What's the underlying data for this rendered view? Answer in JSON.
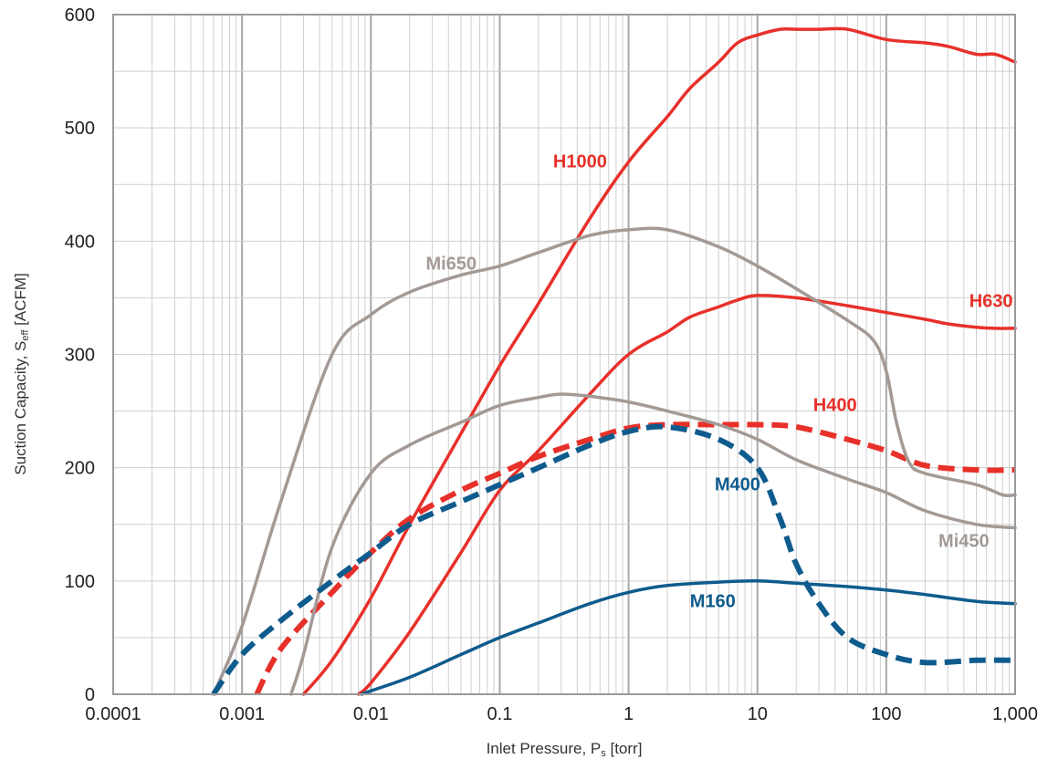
{
  "chart_data": {
    "type": "line",
    "xlabel": "Inlet Pressure, P",
    "xlabel_sub": "s",
    "xlabel_unit": " [torr]",
    "ylabel": "Suction Capacity, S",
    "ylabel_sub": "eff",
    "ylabel_unit": " [ACFM]",
    "x_scale": "log",
    "xlim": [
      0.0001,
      1000
    ],
    "ylim": [
      0,
      600
    ],
    "grid": true,
    "x_ticks": [
      0.0001,
      0.001,
      0.01,
      0.1,
      1,
      10,
      100,
      1000
    ],
    "x_tick_labels": [
      "0.0001",
      "0.001",
      "0.01",
      "0.1",
      "1",
      "10",
      "100",
      "1,000"
    ],
    "y_ticks": [
      0,
      100,
      200,
      300,
      400,
      500,
      600
    ],
    "y_tick_labels": [
      "0",
      "100",
      "200",
      "300",
      "400",
      "500",
      "600"
    ],
    "colors": {
      "red": "#e8302a",
      "gray": "#a39a95",
      "blue": "#0e5b8d",
      "grid": "#cfcfcf",
      "frame": "#9a9a9a"
    },
    "series": [
      {
        "name": "H1000",
        "color": "#e8302a",
        "dash": false,
        "x": [
          0.003,
          0.005,
          0.01,
          0.02,
          0.05,
          0.1,
          0.2,
          0.5,
          1,
          2,
          3,
          5,
          7,
          10,
          15,
          20,
          30,
          50,
          100,
          200,
          300,
          500,
          700,
          1000
        ],
        "y": [
          0,
          30,
          85,
          150,
          230,
          290,
          345,
          420,
          470,
          510,
          535,
          558,
          575,
          582,
          587,
          587,
          587,
          587,
          578,
          575,
          572,
          565,
          565,
          558
        ]
      },
      {
        "name": "H630",
        "color": "#e8302a",
        "dash": false,
        "x": [
          0.008,
          0.01,
          0.02,
          0.05,
          0.1,
          0.2,
          0.5,
          1,
          2,
          3,
          5,
          7,
          10,
          20,
          50,
          100,
          200,
          300,
          500,
          700,
          1000
        ],
        "y": [
          0,
          10,
          55,
          125,
          180,
          215,
          265,
          300,
          320,
          333,
          342,
          348,
          352,
          350,
          343,
          337,
          331,
          327,
          324,
          323,
          323
        ]
      },
      {
        "name": "H400",
        "color": "#e8302a",
        "dash": true,
        "x": [
          0.0013,
          0.002,
          0.005,
          0.01,
          0.02,
          0.05,
          0.1,
          0.2,
          0.5,
          1,
          2,
          5,
          10,
          20,
          50,
          100,
          200,
          500,
          1000
        ],
        "y": [
          0,
          40,
          90,
          125,
          155,
          180,
          195,
          210,
          225,
          235,
          238,
          238,
          238,
          236,
          225,
          215,
          202,
          198,
          198
        ]
      },
      {
        "name": "Mi650",
        "color": "#a39a95",
        "dash": false,
        "x": [
          0.0006,
          0.001,
          0.002,
          0.005,
          0.01,
          0.02,
          0.05,
          0.1,
          0.2,
          0.5,
          1,
          2,
          5,
          10,
          20,
          50,
          80,
          100,
          120,
          150,
          200,
          500,
          800,
          1000
        ],
        "y": [
          0,
          60,
          170,
          300,
          335,
          355,
          370,
          378,
          390,
          405,
          410,
          410,
          395,
          378,
          358,
          330,
          312,
          285,
          240,
          205,
          195,
          185,
          176,
          176
        ]
      },
      {
        "name": "Mi450",
        "color": "#a39a95",
        "dash": false,
        "x": [
          0.0024,
          0.003,
          0.005,
          0.01,
          0.02,
          0.05,
          0.1,
          0.2,
          0.3,
          0.5,
          1,
          2,
          5,
          10,
          20,
          50,
          100,
          200,
          500,
          1000
        ],
        "y": [
          0,
          35,
          130,
          195,
          220,
          240,
          255,
          262,
          265,
          263,
          258,
          250,
          238,
          225,
          207,
          190,
          178,
          162,
          150,
          147
        ]
      },
      {
        "name": "M400",
        "color": "#0e5b8d",
        "dash": true,
        "x": [
          0.0006,
          0.001,
          0.002,
          0.005,
          0.01,
          0.02,
          0.05,
          0.1,
          0.2,
          0.5,
          1,
          2,
          5,
          10,
          15,
          20,
          30,
          50,
          100,
          200,
          500,
          1000
        ],
        "y": [
          0,
          35,
          65,
          100,
          125,
          150,
          170,
          185,
          200,
          220,
          232,
          236,
          225,
          200,
          155,
          115,
          80,
          50,
          35,
          28,
          30,
          30
        ]
      },
      {
        "name": "M160",
        "color": "#0e5b8d",
        "dash": false,
        "x": [
          0.0085,
          0.01,
          0.02,
          0.05,
          0.1,
          0.2,
          0.5,
          1,
          2,
          5,
          10,
          20,
          50,
          100,
          200,
          500,
          1000
        ],
        "y": [
          0,
          3,
          15,
          35,
          50,
          63,
          80,
          90,
          96,
          99,
          100,
          98,
          95,
          92,
          88,
          82,
          80
        ]
      }
    ],
    "annotations": [
      {
        "text": "H1000",
        "color": "#e8302a",
        "x": 0.42,
        "y": 465
      },
      {
        "text": "H630",
        "color": "#e8302a",
        "x": 650,
        "y": 342
      },
      {
        "text": "H400",
        "color": "#e8302a",
        "x": 40,
        "y": 250
      },
      {
        "text": "Mi650",
        "color": "#a39a95",
        "x": 0.042,
        "y": 375
      },
      {
        "text": "Mi450",
        "color": "#a39a95",
        "x": 400,
        "y": 130
      },
      {
        "text": "M400",
        "color": "#0e5b8d",
        "x": 7,
        "y": 180
      },
      {
        "text": "M160",
        "color": "#0e5b8d",
        "x": 4.5,
        "y": 77
      }
    ]
  }
}
